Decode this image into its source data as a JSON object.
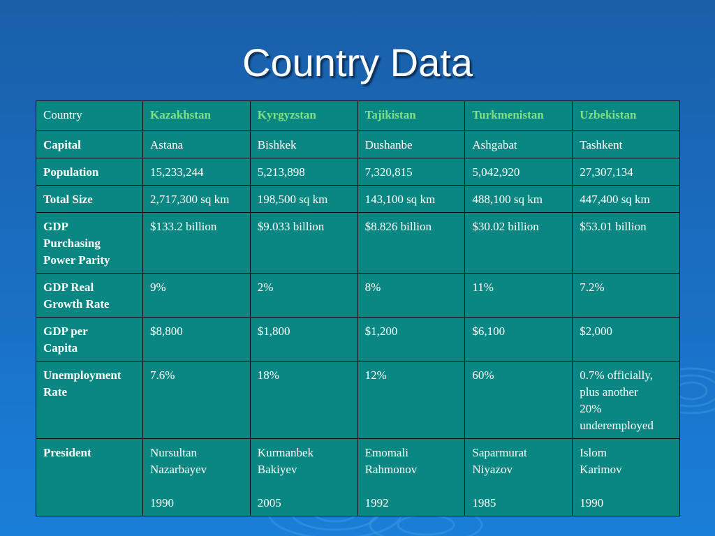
{
  "title": "Country Data",
  "colors": {
    "background": "#1a6cc0",
    "table_fill": "#0a8782",
    "country_header": "#7fe07f",
    "text": "#ffffff"
  },
  "table": {
    "corner_label": "Country",
    "countries": [
      "Kazakhstan",
      "Kyrgyzstan",
      "Tajikistan",
      "Turkmenistan",
      "Uzbekistan"
    ],
    "rows": [
      {
        "label": "Capital",
        "values": [
          "Astana",
          "Bishkek",
          "Dushanbe",
          "Ashgabat",
          "Tashkent"
        ]
      },
      {
        "label": "Population",
        "values": [
          "15,233,244",
          "5,213,898",
          "7,320,815",
          "5,042,920",
          "27,307,134"
        ]
      },
      {
        "label": "Total Size",
        "values": [
          "2,717,300 sq km",
          "198,500 sq km",
          "143,100 sq km",
          "488,100 sq km",
          "447,400 sq km"
        ]
      },
      {
        "label": "GDP\nPurchasing\nPower Parity",
        "values": [
          "$133.2 billion",
          "$9.033 billion",
          "$8.826 billion",
          "$30.02 billion",
          "$53.01 billion"
        ]
      },
      {
        "label": "GDP Real\nGrowth Rate",
        "values": [
          "9%",
          "2%",
          "8%",
          "11%",
          "7.2%"
        ]
      },
      {
        "label": "GDP per\nCapita",
        "values": [
          "$8,800",
          "$1,800",
          "$1,200",
          "$6,100",
          "$2,000"
        ]
      },
      {
        "label": "Unemployment\nRate",
        "values": [
          "7.6%",
          "18%",
          "12%",
          "60%",
          "0.7% officially,\nplus another\n20%\nunderemployed"
        ]
      },
      {
        "label": "President",
        "values": [
          "Nursultan\nNazarbayev\n\n1990",
          "Kurmanbek\nBakiyev\n\n2005",
          "Emomali\nRahmonov\n\n1992",
          "Saparmurat\nNiyazov\n\n1985",
          "Islom\nKarimov\n\n1990"
        ]
      }
    ]
  }
}
